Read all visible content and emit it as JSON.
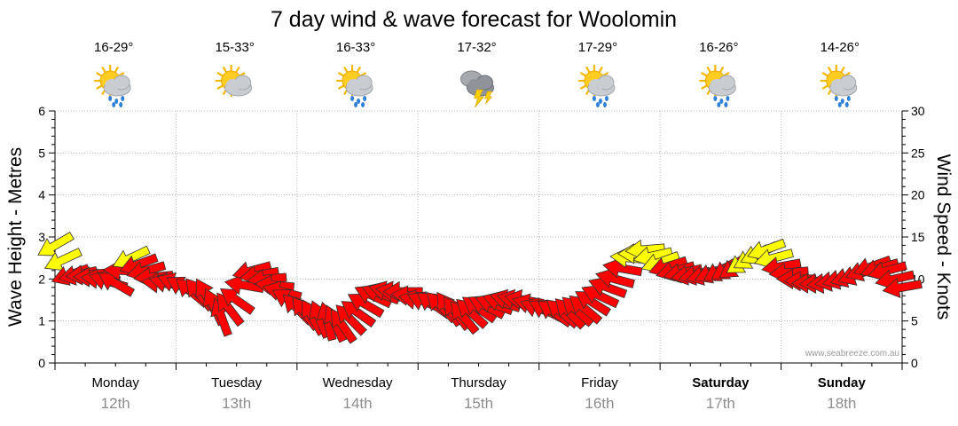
{
  "chart_data": {
    "type": "line",
    "title": "7 day wind & wave forecast for Woolomin",
    "ylabel_left": "Wave Height - Metres",
    "ylabel_right": "Wind Speed - Knots",
    "ylim_left": [
      0,
      6
    ],
    "ylim_right": [
      0,
      30
    ],
    "yticks_left": [
      "0",
      "1",
      "2",
      "3",
      "4",
      "5",
      "6"
    ],
    "yticks_right": [
      "0",
      "5",
      "10",
      "15",
      "20",
      "25",
      "30"
    ],
    "grid": true,
    "watermark": "www.seabreeze.com.au",
    "days": [
      {
        "day": "Monday",
        "date": "12th",
        "temp": "16-29°",
        "icon": "sun-cloud-rain-icon",
        "bold": false
      },
      {
        "day": "Tuesday",
        "date": "13th",
        "temp": "15-33°",
        "icon": "sun-cloud-icon",
        "bold": false
      },
      {
        "day": "Wednesday",
        "date": "14th",
        "temp": "16-33°",
        "icon": "sun-cloud-rain-icon",
        "bold": false
      },
      {
        "day": "Thursday",
        "date": "15th",
        "temp": "17-32°",
        "icon": "storm-icon",
        "bold": false
      },
      {
        "day": "Friday",
        "date": "16th",
        "temp": "17-29°",
        "icon": "sun-cloud-rain-icon",
        "bold": false
      },
      {
        "day": "Saturday",
        "date": "17th",
        "temp": "16-26°",
        "icon": "sun-cloud-rain-icon",
        "bold": true
      },
      {
        "day": "Sunday",
        "date": "18th",
        "temp": "14-26°",
        "icon": "sun-cloud-rain-icon",
        "bold": true
      }
    ],
    "series": [
      {
        "unit": "knots",
        "x_hours": [
          0,
          3,
          6,
          9,
          12,
          15,
          18,
          21,
          24,
          27,
          30,
          33,
          36,
          39,
          42,
          45,
          48,
          51,
          54,
          57,
          60,
          63,
          66,
          69,
          72,
          75,
          78,
          81,
          84,
          87,
          90,
          93,
          96,
          99,
          102,
          105,
          108,
          111,
          114,
          117,
          120,
          123,
          126,
          129,
          132,
          135,
          138,
          141,
          144,
          147,
          150,
          153,
          156,
          159,
          162,
          165,
          168
        ],
        "values": [
          14,
          10.5,
          10.5,
          10,
          9.5,
          12.5,
          11,
          9.5,
          9.5,
          8.5,
          8,
          5.5,
          7.5,
          11,
          10,
          8.5,
          6.5,
          5.5,
          5,
          4.5,
          6,
          8,
          8.5,
          8.5,
          7.5,
          7,
          6.5,
          5.5,
          6.5,
          7,
          7.5,
          7.5,
          6.5,
          6,
          6,
          6.5,
          8,
          10,
          12.5,
          13.5,
          12,
          11,
          10.5,
          10.5,
          11,
          11.5,
          12.5,
          13.5,
          11.5,
          10,
          9.5,
          9.5,
          10,
          10.5,
          11.5,
          11,
          9
        ],
        "direction_deg": [
          150,
          160,
          175,
          185,
          210,
          155,
          165,
          185,
          200,
          220,
          240,
          250,
          215,
          165,
          175,
          195,
          225,
          240,
          255,
          235,
          215,
          205,
          195,
          180,
          190,
          215,
          235,
          230,
          215,
          200,
          195,
          190,
          200,
          215,
          225,
          220,
          205,
          195,
          185,
          175,
          160,
          165,
          170,
          165,
          150,
          145,
          150,
          160,
          170,
          180,
          180,
          175,
          165,
          160,
          160,
          165,
          170
        ]
      }
    ]
  }
}
